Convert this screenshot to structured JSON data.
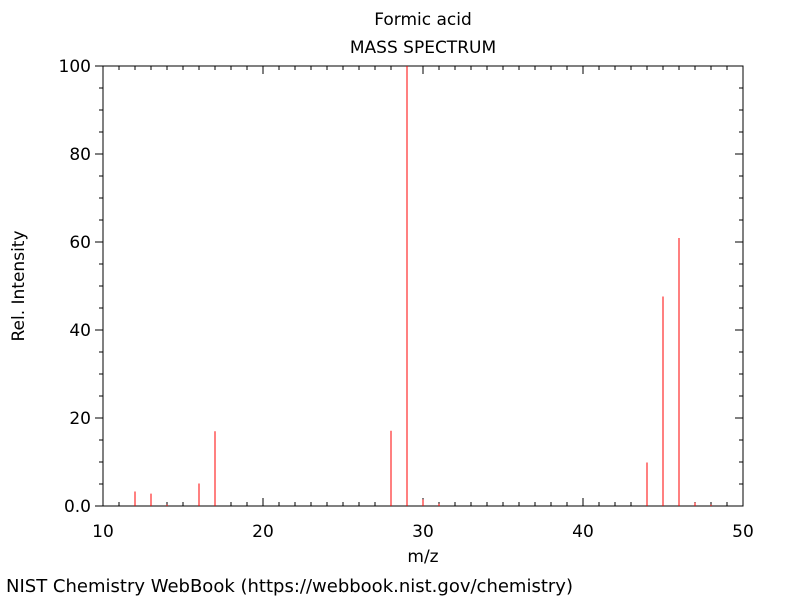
{
  "chart_data": {
    "type": "bar",
    "title": "Formic acid",
    "subtitle": "MASS SPECTRUM",
    "xlabel": "m/z",
    "ylabel": "Rel. Intensity",
    "xlim": [
      10,
      50
    ],
    "ylim": [
      0,
      100
    ],
    "xticks": [
      "10",
      "20",
      "30",
      "40",
      "50"
    ],
    "yticks": [
      "0.0",
      "20",
      "40",
      "60",
      "80",
      "100"
    ],
    "bar_color": "#ff0000",
    "grid": false,
    "series": [
      {
        "x": [
          12,
          13,
          14,
          16,
          17,
          28,
          29,
          30,
          31,
          44,
          45,
          46,
          47,
          48
        ],
        "values": [
          3.3,
          2.8,
          0.3,
          5.1,
          17.0,
          17.1,
          100.0,
          1.5,
          0.5,
          9.9,
          47.6,
          60.9,
          0.8,
          0.3
        ]
      }
    ]
  },
  "footer": "NIST Chemistry WebBook (https://webbook.nist.gov/chemistry)"
}
